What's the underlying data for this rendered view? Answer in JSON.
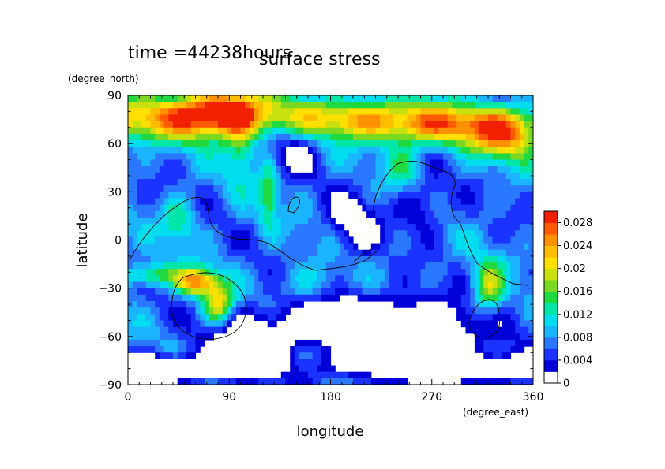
{
  "figure": {
    "time_label": "time =44238hours",
    "title": "surface stress"
  },
  "chart_data": {
    "type": "heatmap",
    "title": "surface stress",
    "subtitle": "time =44238hours",
    "xlabel": "longitude",
    "ylabel": "latitude",
    "xunit": "(degree_east)",
    "yunit": "(degree_north)",
    "xlim": [
      0,
      360
    ],
    "ylim": [
      -90,
      90
    ],
    "xticks": [
      "0",
      "90",
      "180",
      "270",
      "360"
    ],
    "yticks": [
      "90",
      "60",
      "30",
      "0",
      "−30",
      "−60",
      "−90"
    ],
    "colorbar": {
      "ticks": [
        "0.028",
        "0.024",
        "0.02",
        "0.016",
        "0.012",
        "0.008",
        "0.004",
        "0"
      ],
      "range": [
        0,
        0.03
      ],
      "levels": [
        {
          "lo": 0.0,
          "color": "#ffffff"
        },
        {
          "lo": 0.002,
          "color": "#0000d8"
        },
        {
          "lo": 0.004,
          "color": "#1a33ff"
        },
        {
          "lo": 0.006,
          "color": "#2a78ff"
        },
        {
          "lo": 0.008,
          "color": "#1ab4ff"
        },
        {
          "lo": 0.01,
          "color": "#00ddee"
        },
        {
          "lo": 0.012,
          "color": "#00e6a8"
        },
        {
          "lo": 0.014,
          "color": "#20d840"
        },
        {
          "lo": 0.016,
          "color": "#7ad820"
        },
        {
          "lo": 0.018,
          "color": "#c8e010"
        },
        {
          "lo": 0.02,
          "color": "#ffe000"
        },
        {
          "lo": 0.022,
          "color": "#ffbc00"
        },
        {
          "lo": 0.024,
          "color": "#ff9000"
        },
        {
          "lo": 0.026,
          "color": "#ff5a00"
        },
        {
          "lo": 0.028,
          "color": "#f02000"
        }
      ]
    },
    "field": {
      "background": 0.007,
      "features": [
        {
          "lon": 20,
          "lat": 75,
          "slon": 60,
          "slat": 10,
          "amp": 0.014
        },
        {
          "lon": 85,
          "lat": 80,
          "slon": 30,
          "slat": 10,
          "amp": 0.02
        },
        {
          "lon": 280,
          "lat": 72,
          "slon": 70,
          "slat": 9,
          "amp": 0.018
        },
        {
          "lon": 335,
          "lat": 62,
          "slon": 20,
          "slat": 10,
          "amp": 0.012
        },
        {
          "lon": 190,
          "lat": 78,
          "slon": 40,
          "slat": 8,
          "amp": 0.009
        },
        {
          "lon": 60,
          "lat": -26,
          "slon": 12,
          "slat": 6,
          "amp": 0.018
        },
        {
          "lon": 80,
          "lat": -40,
          "slon": 10,
          "slat": 10,
          "amp": 0.014
        },
        {
          "lon": 20,
          "lat": -22,
          "slon": 18,
          "slat": 5,
          "amp": 0.01
        },
        {
          "lon": 125,
          "lat": 28,
          "slon": 6,
          "slat": 14,
          "amp": 0.009
        },
        {
          "lon": 45,
          "lat": 12,
          "slon": 10,
          "slat": 10,
          "amp": 0.007
        },
        {
          "lon": 320,
          "lat": -30,
          "slon": 10,
          "slat": 12,
          "amp": 0.012
        },
        {
          "lon": 100,
          "lat": 55,
          "slon": 10,
          "slat": 15,
          "amp": 0.007
        },
        {
          "lon": 245,
          "lat": 45,
          "slon": 12,
          "slat": 10,
          "amp": 0.006
        },
        {
          "lon": 160,
          "lat": -30,
          "slon": 20,
          "slat": 10,
          "amp": 0.005
        }
      ],
      "voids": [
        {
          "lon": 200,
          "lat": -50,
          "slon": 60,
          "slat": 12,
          "amp": 0.01
        },
        {
          "lon": 260,
          "lat": -60,
          "slon": 40,
          "slat": 12,
          "amp": 0.009
        },
        {
          "lon": 110,
          "lat": -62,
          "slon": 30,
          "slat": 10,
          "amp": 0.008
        },
        {
          "lon": 200,
          "lat": 10,
          "slon": 15,
          "slat": 14,
          "amp": 0.007
        },
        {
          "lon": 150,
          "lat": 55,
          "slon": 15,
          "slat": 10,
          "amp": 0.006
        },
        {
          "lon": 260,
          "lat": 20,
          "slon": 15,
          "slat": 12,
          "amp": 0.006
        },
        {
          "lon": 20,
          "lat": -80,
          "slon": 60,
          "slat": 6,
          "amp": 0.012
        },
        {
          "lon": 300,
          "lat": -80,
          "slon": 80,
          "slat": 6,
          "amp": 0.012
        }
      ]
    }
  }
}
